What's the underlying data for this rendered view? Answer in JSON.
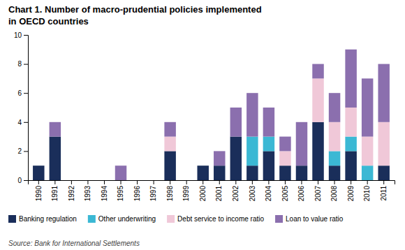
{
  "chart_data": {
    "type": "bar",
    "stacked": true,
    "title": "Chart 1. Number of macro-prudential policies implemented",
    "subtitle": "in OECD countries",
    "source": "Source: Bank for International Settlements",
    "categories": [
      "1990",
      "1991",
      "1992",
      "1993",
      "1994",
      "1995",
      "1996",
      "1997",
      "1998",
      "1999",
      "2000",
      "2001",
      "2002",
      "2003",
      "2004",
      "2005",
      "2006",
      "2007",
      "2008",
      "2009",
      "2010",
      "2011"
    ],
    "series": [
      {
        "name": "Banking regulation",
        "color": "#1a2e5a",
        "values": [
          1,
          3,
          0,
          0,
          0,
          0,
          0,
          0,
          2,
          0,
          1,
          1,
          3,
          1,
          2,
          1,
          1,
          4,
          1,
          2,
          0,
          1
        ]
      },
      {
        "name": "Other underwriting",
        "color": "#3bb8d4",
        "values": [
          0,
          0,
          0,
          0,
          0,
          0,
          0,
          0,
          0,
          0,
          0,
          0,
          0,
          2,
          1,
          0,
          0,
          0,
          1,
          1,
          1,
          0
        ]
      },
      {
        "name": "Debt service to income ratio",
        "color": "#f0c8d8",
        "values": [
          0,
          0,
          0,
          0,
          0,
          0,
          0,
          0,
          1,
          0,
          0,
          0,
          0,
          0,
          0,
          1,
          0,
          3,
          2,
          2,
          2,
          3
        ]
      },
      {
        "name": "Loan to value ratio",
        "color": "#8b6fae",
        "values": [
          0,
          1,
          0,
          0,
          0,
          1,
          0,
          0,
          1,
          0,
          0,
          1,
          2,
          3,
          2,
          1,
          3,
          1,
          2,
          4,
          4,
          4
        ]
      }
    ],
    "ylim": [
      0,
      10
    ],
    "yticks": [
      0,
      2,
      4,
      6,
      8,
      10
    ],
    "grid": false,
    "legend": "bottom"
  }
}
